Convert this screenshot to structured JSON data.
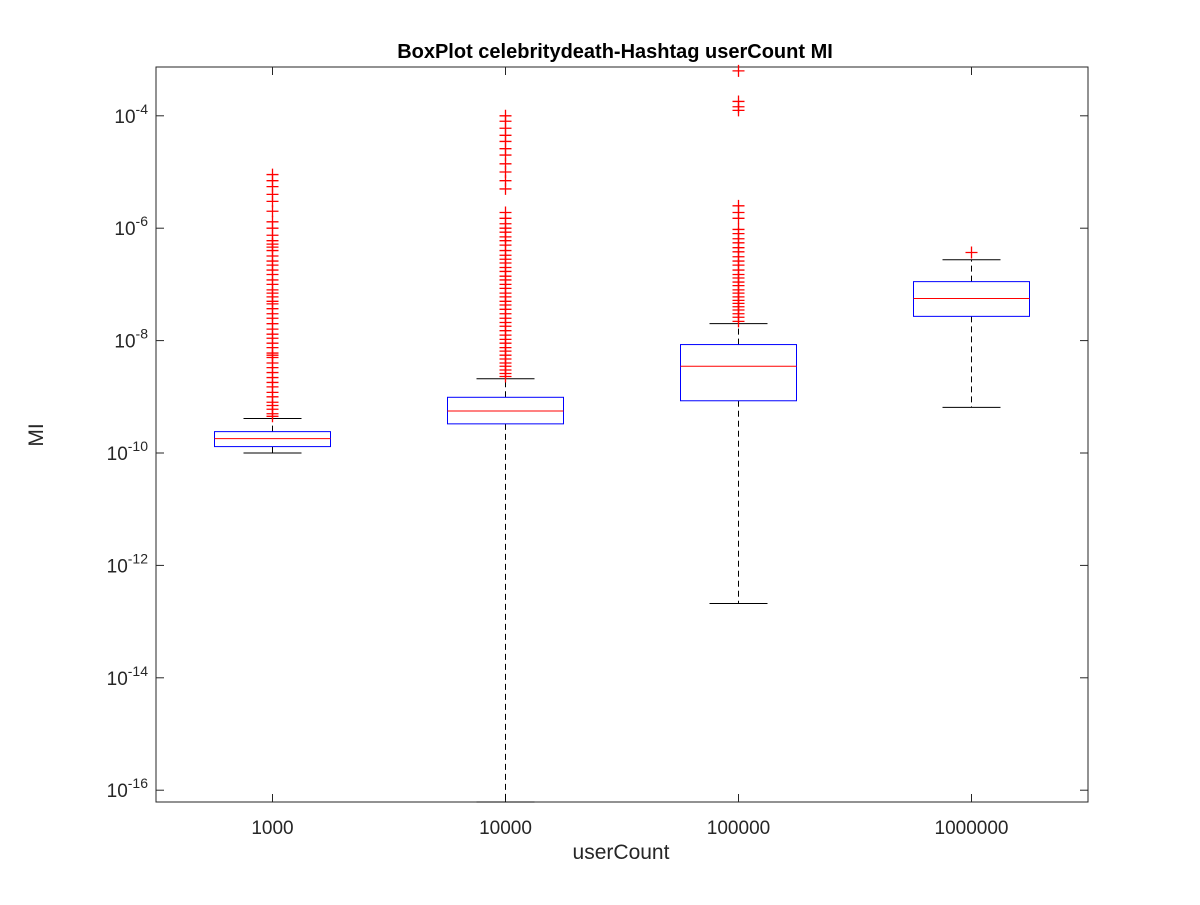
{
  "chart_data": {
    "type": "boxplot",
    "title": "BoxPlot celebritydeath-Hashtag userCount MI",
    "xlabel": "userCount",
    "ylabel": "MI",
    "categories": [
      "1000",
      "10000",
      "100000",
      "1000000"
    ],
    "y_scale": "log",
    "ylim": [
      5e-17,
      0.0007
    ],
    "y_ticks": [
      {
        "base": "10",
        "exp": "-16",
        "value": 1e-16
      },
      {
        "base": "10",
        "exp": "-14",
        "value": 1e-14
      },
      {
        "base": "10",
        "exp": "-12",
        "value": 1e-12
      },
      {
        "base": "10",
        "exp": "-10",
        "value": 1e-10
      },
      {
        "base": "10",
        "exp": "-8",
        "value": 1e-08
      },
      {
        "base": "10",
        "exp": "-6",
        "value": 1e-06
      },
      {
        "base": "10",
        "exp": "-4",
        "value": 0.0001
      }
    ],
    "boxes": [
      {
        "category": "1000",
        "whisker_low": 1e-10,
        "q1": 1.3e-10,
        "median": 1.8e-10,
        "q3": 2.4e-10,
        "whisker_high": 4.1e-10,
        "outliers": [
          4.5e-10,
          5e-10,
          6e-10,
          7e-10,
          8e-10,
          1e-09,
          1.2e-09,
          1.5e-09,
          1.8e-09,
          2.2e-09,
          2.7e-09,
          3.3e-09,
          4e-09,
          5e-09,
          5.5e-09,
          6e-09,
          7.5e-09,
          9e-09,
          1.1e-08,
          1.3e-08,
          1.6e-08,
          2e-08,
          2.5e-08,
          3e-08,
          3.7e-08,
          4.5e-08,
          5e-08,
          6e-08,
          7e-08,
          8e-08,
          1e-07,
          1.2e-07,
          1.5e-07,
          1.8e-07,
          2.2e-07,
          2.6e-07,
          3.2e-07,
          4e-07,
          4.6e-07,
          5.2e-07,
          6e-07,
          7.5e-07,
          1e-06,
          1.3e-06,
          2e-06,
          3e-06,
          4e-06,
          5.5e-06,
          7e-06,
          9e-06
        ]
      },
      {
        "category": "10000",
        "whisker_low": 5e-17,
        "q1": 3.3e-10,
        "median": 5.6e-10,
        "q3": 9.8e-10,
        "whisker_high": 2.1e-09,
        "outliers": [
          2.3e-09,
          2.6e-09,
          3e-09,
          3.5e-09,
          4e-09,
          4.7e-09,
          5.5e-09,
          6.5e-09,
          7.5e-09,
          9e-09,
          1.05e-08,
          1.25e-08,
          1.5e-08,
          1.8e-08,
          2.1e-08,
          2.5e-08,
          3e-08,
          3.6e-08,
          4.3e-08,
          5e-08,
          6e-08,
          7e-08,
          8.5e-08,
          1e-07,
          1.2e-07,
          1.4e-07,
          1.7e-07,
          2e-07,
          2.4e-07,
          2.8e-07,
          3.3e-07,
          4e-07,
          5e-07,
          6e-07,
          7e-07,
          8.5e-07,
          1e-06,
          1.2e-06,
          1.5e-06,
          1.9e-06,
          5e-06,
          7e-06,
          1e-05,
          1.4e-05,
          2e-05,
          2.6e-05,
          3.5e-05,
          4.5e-05,
          6e-05,
          8e-05,
          0.0001
        ]
      },
      {
        "category": "100000",
        "whisker_low": 2.1e-13,
        "q1": 8.5e-10,
        "median": 3.5e-09,
        "q3": 8.5e-09,
        "whisker_high": 2e-08,
        "outliers": [
          2.2e-08,
          2.6e-08,
          3e-08,
          3.5e-08,
          4e-08,
          4.6e-08,
          5.2e-08,
          6e-08,
          7e-08,
          8e-08,
          9.5e-08,
          1.1e-07,
          1.3e-07,
          1.5e-07,
          1.8e-07,
          2.2e-07,
          2.6e-07,
          3.1e-07,
          3.8e-07,
          4.5e-07,
          5.5e-07,
          6.5e-07,
          8e-07,
          9.5e-07,
          1.5e-06,
          1.9e-06,
          2.5e-06,
          0.000125,
          0.000145,
          0.00018,
          0.00063
        ]
      },
      {
        "category": "1000000",
        "whisker_low": 6.5e-10,
        "q1": 2.7e-08,
        "median": 5.6e-08,
        "q3": 1.12e-07,
        "whisker_high": 2.75e-07,
        "outliers": [
          3.7e-07
        ]
      }
    ],
    "colors": {
      "box": "#0000ff",
      "median": "#ff0000",
      "outlier": "#ff0000",
      "whisker": "#000000",
      "axis": "#262626"
    },
    "grid": false,
    "legend": "none"
  }
}
